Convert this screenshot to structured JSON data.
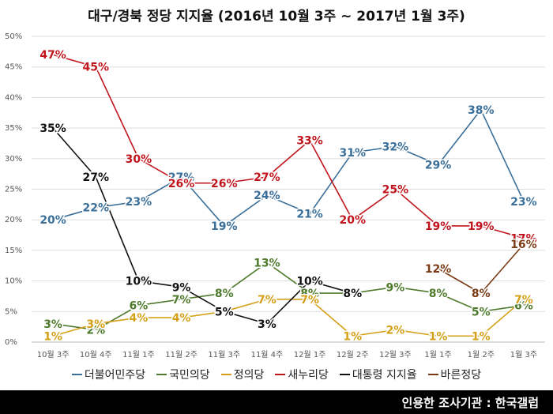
{
  "title": "대구/경북 정당 지지율 (2016년 10월 3주 ~ 2017년 1월 3주)",
  "footer": "인용한 조사기관 : 한국갤럽",
  "chart_data": {
    "type": "line",
    "title": "대구/경북 정당 지지율 (2016년 10월 3주 ~ 2017년 1월 3주)",
    "categories": [
      "10월 3주",
      "10월 4주",
      "11월 1주",
      "11월 2주",
      "11월 3주",
      "11월 4주",
      "12월 1주",
      "12월 2주",
      "12월 3주",
      "1월 1주",
      "1월 2주",
      "1월 3주"
    ],
    "y_ticks": [
      "0%",
      "5%",
      "10%",
      "15%",
      "20%",
      "25%",
      "30%",
      "35%",
      "40%",
      "45%",
      "50%"
    ],
    "ylim": [
      0,
      50
    ],
    "grid": true,
    "legend_position": "bottom",
    "series": [
      {
        "name": "더불어민주당",
        "color": "#3A6F9A",
        "values": [
          20,
          22,
          23,
          27,
          19,
          24,
          21,
          31,
          32,
          29,
          38,
          23
        ]
      },
      {
        "name": "국민의당",
        "color": "#4E7A2B",
        "values": [
          3,
          2,
          6,
          7,
          8,
          13,
          8,
          8,
          9,
          8,
          5,
          6
        ]
      },
      {
        "name": "정의당",
        "color": "#D4A017",
        "values": [
          1,
          3,
          4,
          4,
          5,
          7,
          7,
          1,
          2,
          1,
          1,
          7
        ]
      },
      {
        "name": "새누리당",
        "color": "#C0141C",
        "values": [
          47,
          45,
          30,
          26,
          26,
          27,
          33,
          20,
          25,
          19,
          19,
          17
        ]
      },
      {
        "name": "대통령 지지율",
        "color": "#111111",
        "values": [
          35,
          27,
          10,
          9,
          5,
          3,
          10,
          8,
          null,
          null,
          null,
          null
        ]
      },
      {
        "name": "바른정당",
        "color": "#7A3B14",
        "values": [
          null,
          null,
          null,
          null,
          null,
          null,
          null,
          null,
          null,
          12,
          8,
          16
        ]
      }
    ]
  }
}
